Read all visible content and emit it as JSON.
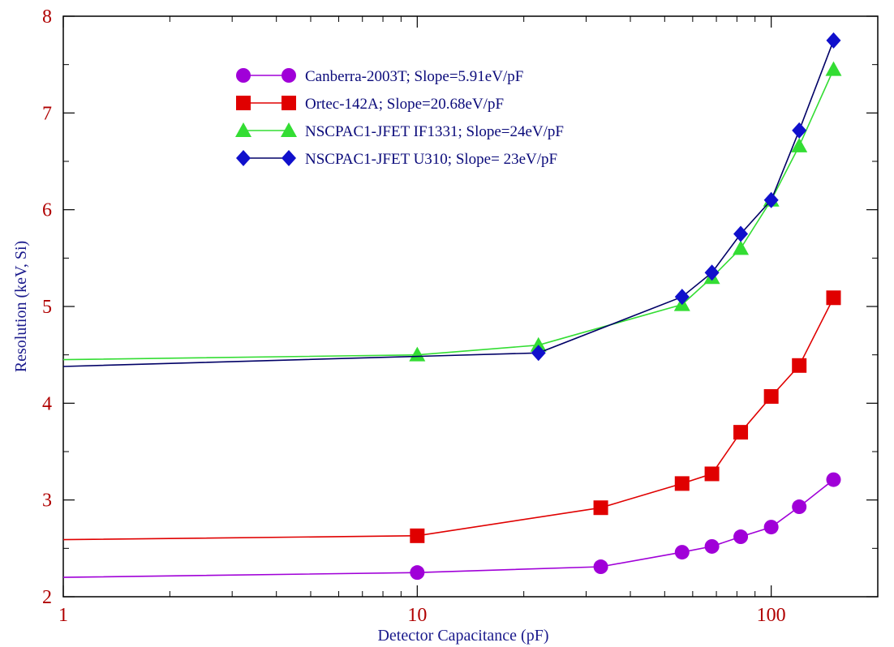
{
  "chart_data": {
    "type": "line",
    "title": "",
    "xlabel": "Detector Capacitance (pF)",
    "ylabel": "Resolution (keV, Si)",
    "xscale": "log",
    "xlim": [
      1,
      200
    ],
    "ylim": [
      2,
      8
    ],
    "x_ticks": [
      1,
      10,
      100
    ],
    "x_tick_labels": [
      "1",
      "10",
      "100"
    ],
    "y_ticks": [
      2,
      3,
      4,
      5,
      6,
      7,
      8
    ],
    "y_tick_labels": [
      "2",
      "3",
      "4",
      "5",
      "6",
      "7",
      "8"
    ],
    "grid": false,
    "legend_position": "top-center",
    "series": [
      {
        "name": "Canberra-2003T; Slope=5.91eV/pF",
        "color": "#a000d8",
        "marker": "circle",
        "x": [
          1,
          10,
          33,
          56,
          68,
          82,
          100,
          120,
          150
        ],
        "y": [
          2.2,
          2.25,
          2.31,
          2.46,
          2.52,
          2.62,
          2.72,
          2.93,
          3.21
        ],
        "marker_from_index": 1
      },
      {
        "name": "Ortec-142A; Slope=20.68eV/pF",
        "color": "#e00000",
        "marker": "square",
        "x": [
          1,
          10,
          33,
          56,
          68,
          82,
          100,
          120,
          150
        ],
        "y": [
          2.59,
          2.63,
          2.92,
          3.17,
          3.27,
          3.7,
          4.07,
          4.39,
          5.09
        ],
        "marker_from_index": 1
      },
      {
        "name": "NSCPAC1-JFET IF1331; Slope=24eV/pF",
        "color": "#33dd33",
        "marker": "triangle",
        "x": [
          1,
          10,
          22,
          56,
          68,
          82,
          100,
          120,
          150
        ],
        "y": [
          4.45,
          4.5,
          4.6,
          5.02,
          5.3,
          5.6,
          6.1,
          6.66,
          7.45
        ],
        "marker_from_index": 1
      },
      {
        "name": "NSCPAC1-JFET U310; Slope= 23eV/pF",
        "color": "#1010cc",
        "marker": "diamond",
        "x": [
          1,
          22,
          56,
          68,
          82,
          100,
          120,
          150
        ],
        "y": [
          4.38,
          4.52,
          5.1,
          5.35,
          5.75,
          6.1,
          6.82,
          7.75
        ],
        "marker_from_index": 1
      }
    ]
  }
}
